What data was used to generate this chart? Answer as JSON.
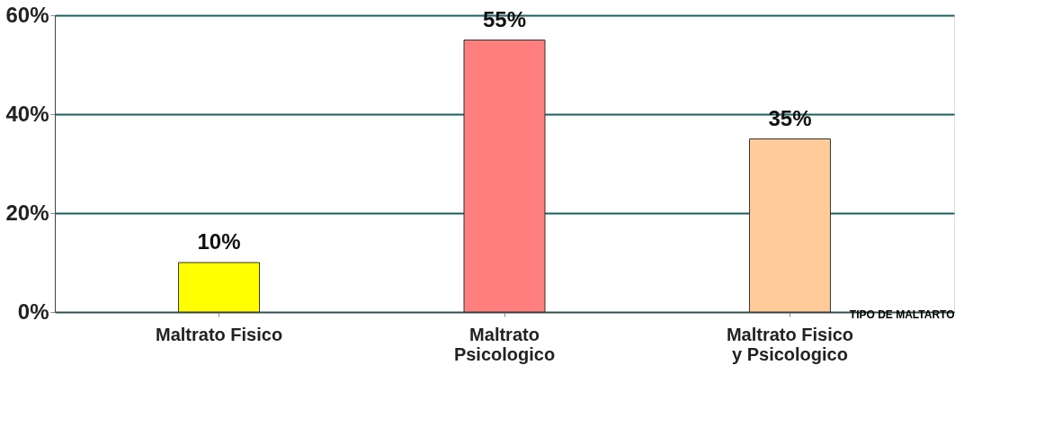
{
  "chart_data": {
    "type": "bar",
    "categories": [
      "Maltrato Fisico",
      "Maltrato Psicologico",
      "Maltrato Fisico y Psicologico"
    ],
    "values": [
      10,
      55,
      35
    ],
    "colors": [
      "#ffff00",
      "#ff7f7f",
      "#ffcc99"
    ],
    "value_labels": [
      "10%",
      "55%",
      "35%"
    ],
    "xlabel": "TIPO DE MALTARTO",
    "ylim": [
      0,
      60
    ],
    "yticks": [
      {
        "value": 0,
        "label": "0%"
      },
      {
        "value": 20,
        "label": "20%"
      },
      {
        "value": 40,
        "label": "40%"
      },
      {
        "value": 60,
        "label": "60%"
      }
    ],
    "grid": "y"
  }
}
